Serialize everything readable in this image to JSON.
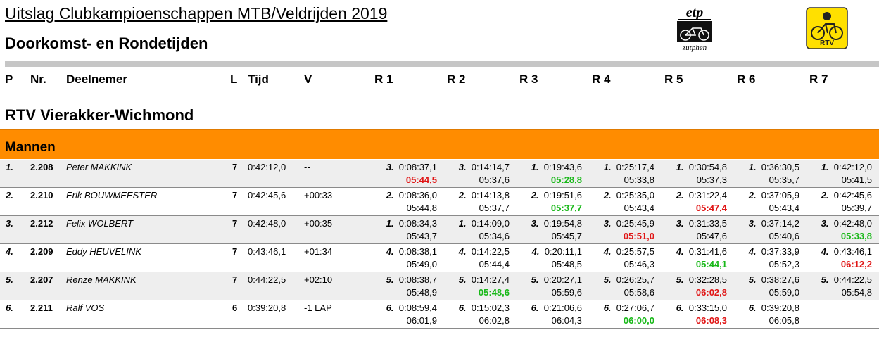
{
  "header": {
    "title": "Uitslag Clubkampioenschappen MTB/Veldrijden 2019",
    "subtitle": "Doorkomst- en Rondetijden",
    "logo_left_text_top": "etp",
    "logo_left_text_bottom": "zutphen",
    "logo_right_text": "RTV"
  },
  "columns": {
    "p": "P",
    "nr": "Nr.",
    "deelnemer": "Deelnemer",
    "l": "L",
    "tijd": "Tijd",
    "v": "V",
    "r1": "R 1",
    "r2": "R 2",
    "r3": "R 3",
    "r4": "R 4",
    "r5": "R 5",
    "r6": "R 6",
    "r7": "R 7"
  },
  "club": "RTV Vierakker-Wichmond",
  "category": "Mannen",
  "colors": {
    "category_bar": "#ff8c00",
    "fastest_lap": "#18b818",
    "slowest_lap": "#e01515",
    "row_shade": "#eeeeee"
  },
  "riders": [
    {
      "pos": "1.",
      "nr": "2.208",
      "name": "Peter MAKKINK",
      "laps": "7",
      "time": "0:42:12,0",
      "gap": "--",
      "rounds": [
        {
          "rank": "3.",
          "cum": "0:08:37,1",
          "lap": "05:44,5",
          "mark": "red"
        },
        {
          "rank": "3.",
          "cum": "0:14:14,7",
          "lap": "05:37,6",
          "mark": ""
        },
        {
          "rank": "1.",
          "cum": "0:19:43,6",
          "lap": "05:28,8",
          "mark": "green"
        },
        {
          "rank": "1.",
          "cum": "0:25:17,4",
          "lap": "05:33,8",
          "mark": ""
        },
        {
          "rank": "1.",
          "cum": "0:30:54,8",
          "lap": "05:37,3",
          "mark": ""
        },
        {
          "rank": "1.",
          "cum": "0:36:30,5",
          "lap": "05:35,7",
          "mark": ""
        },
        {
          "rank": "1.",
          "cum": "0:42:12,0",
          "lap": "05:41,5",
          "mark": ""
        }
      ]
    },
    {
      "pos": "2.",
      "nr": "2.210",
      "name": "Erik BOUWMEESTER",
      "laps": "7",
      "time": "0:42:45,6",
      "gap": "+00:33",
      "rounds": [
        {
          "rank": "2.",
          "cum": "0:08:36,0",
          "lap": "05:44,8",
          "mark": ""
        },
        {
          "rank": "2.",
          "cum": "0:14:13,8",
          "lap": "05:37,7",
          "mark": ""
        },
        {
          "rank": "2.",
          "cum": "0:19:51,6",
          "lap": "05:37,7",
          "mark": "green"
        },
        {
          "rank": "2.",
          "cum": "0:25:35,0",
          "lap": "05:43,4",
          "mark": ""
        },
        {
          "rank": "2.",
          "cum": "0:31:22,4",
          "lap": "05:47,4",
          "mark": "red"
        },
        {
          "rank": "2.",
          "cum": "0:37:05,9",
          "lap": "05:43,4",
          "mark": ""
        },
        {
          "rank": "2.",
          "cum": "0:42:45,6",
          "lap": "05:39,7",
          "mark": ""
        }
      ]
    },
    {
      "pos": "3.",
      "nr": "2.212",
      "name": "Felix WOLBERT",
      "laps": "7",
      "time": "0:42:48,0",
      "gap": "+00:35",
      "rounds": [
        {
          "rank": "1.",
          "cum": "0:08:34,3",
          "lap": "05:43,7",
          "mark": ""
        },
        {
          "rank": "1.",
          "cum": "0:14:09,0",
          "lap": "05:34,6",
          "mark": ""
        },
        {
          "rank": "3.",
          "cum": "0:19:54,8",
          "lap": "05:45,7",
          "mark": ""
        },
        {
          "rank": "3.",
          "cum": "0:25:45,9",
          "lap": "05:51,0",
          "mark": "red"
        },
        {
          "rank": "3.",
          "cum": "0:31:33,5",
          "lap": "05:47,6",
          "mark": ""
        },
        {
          "rank": "3.",
          "cum": "0:37:14,2",
          "lap": "05:40,6",
          "mark": ""
        },
        {
          "rank": "3.",
          "cum": "0:42:48,0",
          "lap": "05:33,8",
          "mark": "green"
        }
      ]
    },
    {
      "pos": "4.",
      "nr": "2.209",
      "name": "Eddy HEUVELINK",
      "laps": "7",
      "time": "0:43:46,1",
      "gap": "+01:34",
      "rounds": [
        {
          "rank": "4.",
          "cum": "0:08:38,1",
          "lap": "05:49,0",
          "mark": ""
        },
        {
          "rank": "4.",
          "cum": "0:14:22,5",
          "lap": "05:44,4",
          "mark": ""
        },
        {
          "rank": "4.",
          "cum": "0:20:11,1",
          "lap": "05:48,5",
          "mark": ""
        },
        {
          "rank": "4.",
          "cum": "0:25:57,5",
          "lap": "05:46,3",
          "mark": ""
        },
        {
          "rank": "4.",
          "cum": "0:31:41,6",
          "lap": "05:44,1",
          "mark": "green"
        },
        {
          "rank": "4.",
          "cum": "0:37:33,9",
          "lap": "05:52,3",
          "mark": ""
        },
        {
          "rank": "4.",
          "cum": "0:43:46,1",
          "lap": "06:12,2",
          "mark": "red"
        }
      ]
    },
    {
      "pos": "5.",
      "nr": "2.207",
      "name": "Renze MAKKINK",
      "laps": "7",
      "time": "0:44:22,5",
      "gap": "+02:10",
      "rounds": [
        {
          "rank": "5.",
          "cum": "0:08:38,7",
          "lap": "05:48,9",
          "mark": ""
        },
        {
          "rank": "5.",
          "cum": "0:14:27,4",
          "lap": "05:48,6",
          "mark": "green"
        },
        {
          "rank": "5.",
          "cum": "0:20:27,1",
          "lap": "05:59,6",
          "mark": ""
        },
        {
          "rank": "5.",
          "cum": "0:26:25,7",
          "lap": "05:58,6",
          "mark": ""
        },
        {
          "rank": "5.",
          "cum": "0:32:28,5",
          "lap": "06:02,8",
          "mark": "red"
        },
        {
          "rank": "5.",
          "cum": "0:38:27,6",
          "lap": "05:59,0",
          "mark": ""
        },
        {
          "rank": "5.",
          "cum": "0:44:22,5",
          "lap": "05:54,8",
          "mark": ""
        }
      ]
    },
    {
      "pos": "6.",
      "nr": "2.211",
      "name": "Ralf VOS",
      "laps": "6",
      "time": "0:39:20,8",
      "gap": "-1 LAP",
      "rounds": [
        {
          "rank": "6.",
          "cum": "0:08:59,4",
          "lap": "06:01,9",
          "mark": ""
        },
        {
          "rank": "6.",
          "cum": "0:15:02,3",
          "lap": "06:02,8",
          "mark": ""
        },
        {
          "rank": "6.",
          "cum": "0:21:06,6",
          "lap": "06:04,3",
          "mark": ""
        },
        {
          "rank": "6.",
          "cum": "0:27:06,7",
          "lap": "06:00,0",
          "mark": "green"
        },
        {
          "rank": "6.",
          "cum": "0:33:15,0",
          "lap": "06:08,3",
          "mark": "red"
        },
        {
          "rank": "6.",
          "cum": "0:39:20,8",
          "lap": "06:05,8",
          "mark": ""
        }
      ]
    }
  ]
}
